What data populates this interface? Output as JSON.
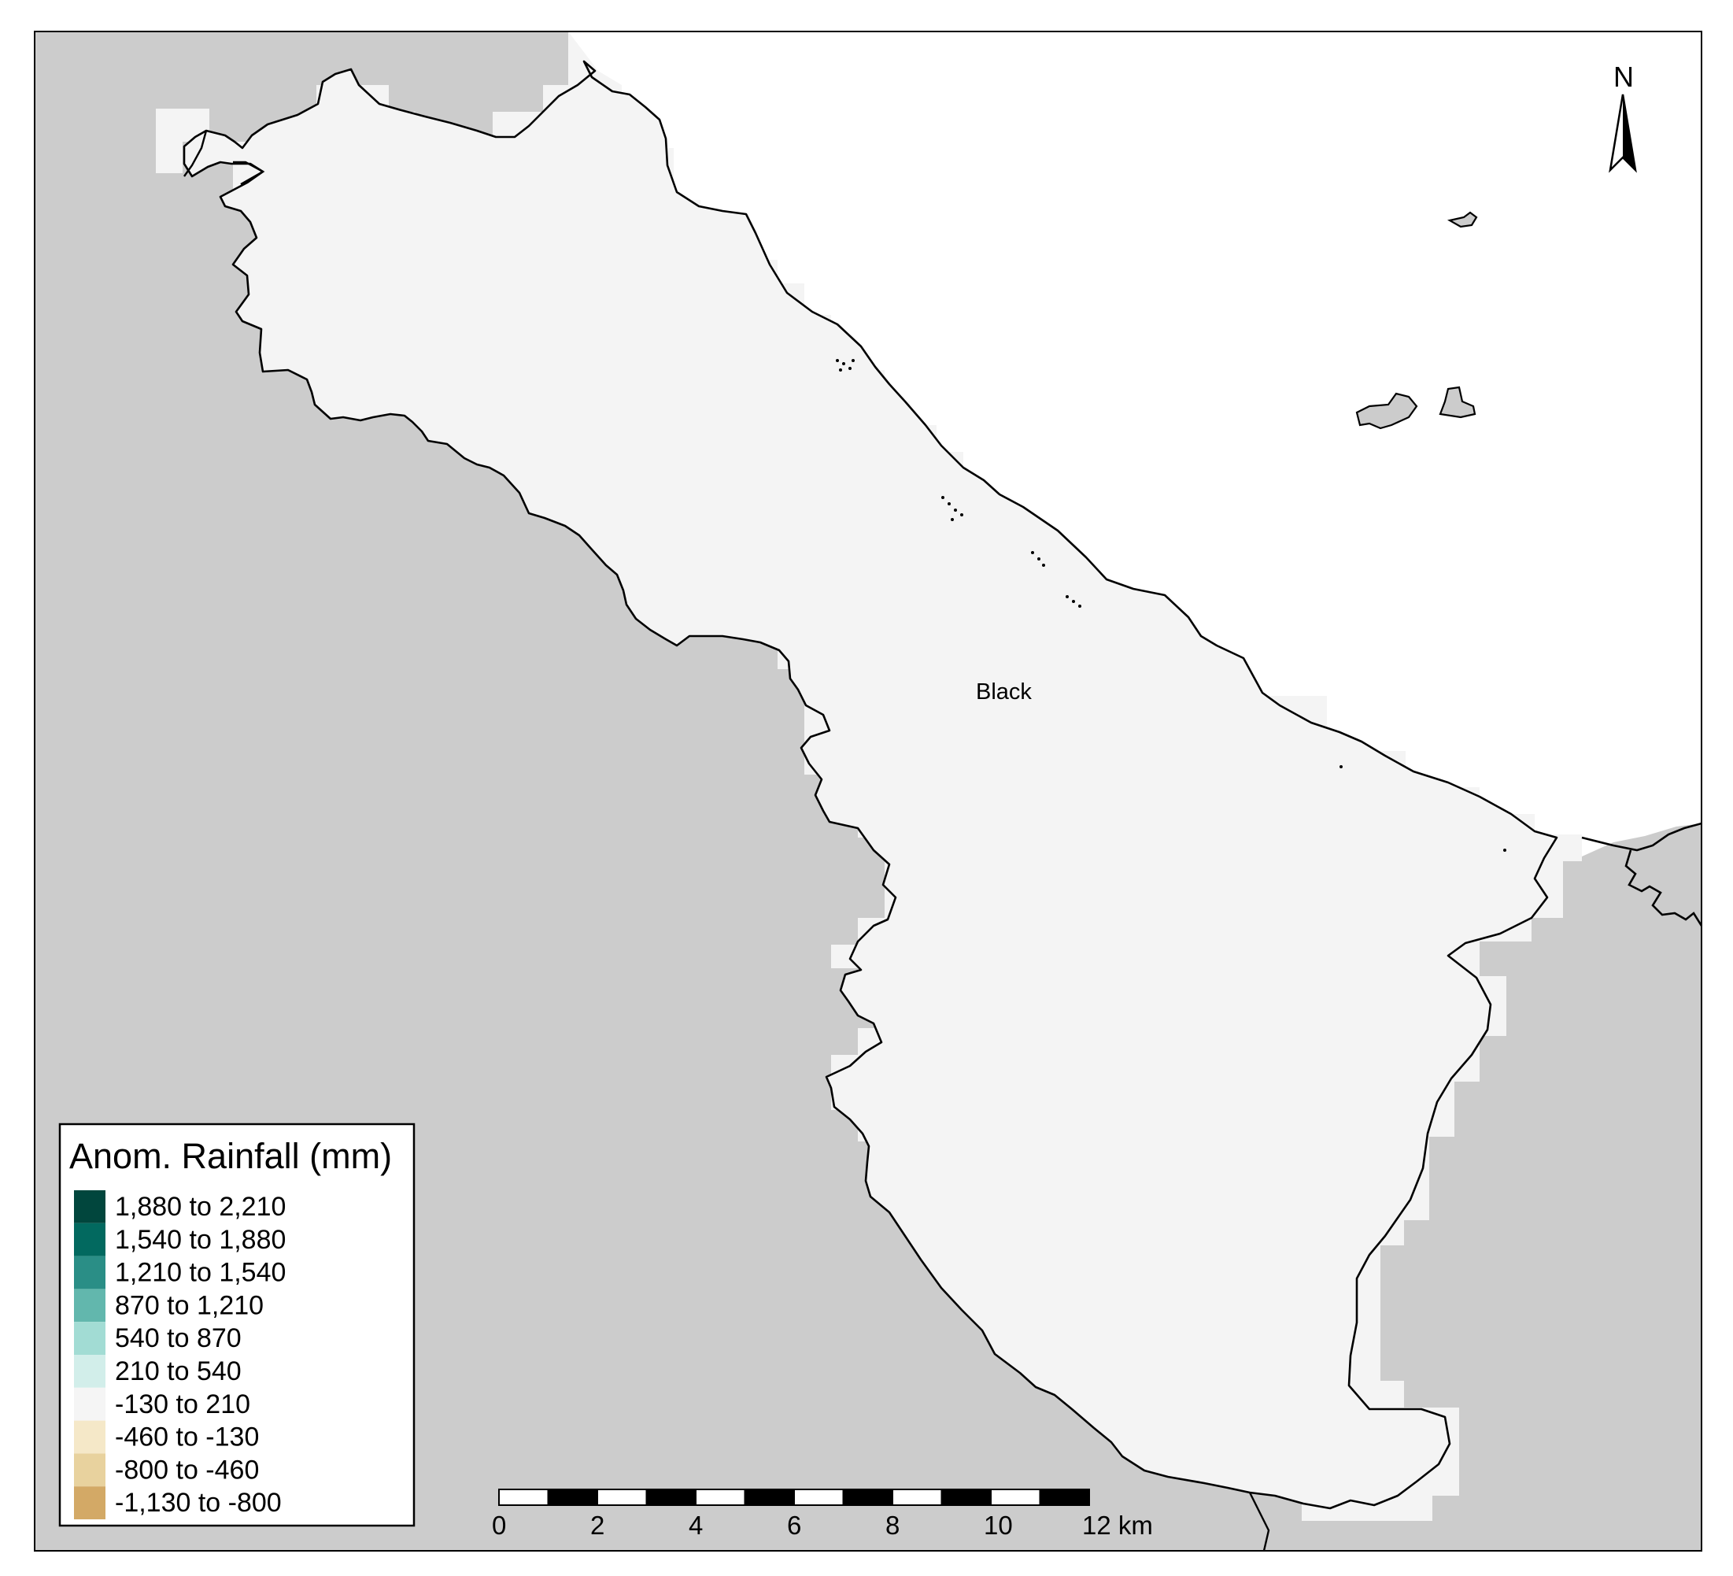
{
  "map": {
    "place_label": "Black",
    "north_arrow_label": "N",
    "colors": {
      "surrounding_area": "#cccccc",
      "study_area": "#f4f4f4",
      "sea": "#ffffff",
      "boundary": "#000000"
    }
  },
  "legend": {
    "title": "Anom. Rainfall (mm)",
    "classes": [
      {
        "label": "1,880 to 2,210",
        "color": "#01463d"
      },
      {
        "label": "1,540 to 1,880",
        "color": "#02695f"
      },
      {
        "label": "1,210 to 1,540",
        "color": "#2a8e86"
      },
      {
        "label": "870 to 1,210",
        "color": "#62b7ad"
      },
      {
        "label": "540 to 870",
        "color": "#a2dcd4"
      },
      {
        "label": "210 to 540",
        "color": "#d2eeea"
      },
      {
        "label": "-130 to 210",
        "color": "#f5f5f5"
      },
      {
        "label": "-460 to -130",
        "color": "#f5e8c8"
      },
      {
        "label": "-800 to -460",
        "color": "#e8d29e"
      },
      {
        "label": "-1,130 to -800",
        "color": "#d3a966"
      }
    ]
  },
  "scale_bar": {
    "ticks": [
      "0",
      "2",
      "4",
      "6",
      "8",
      "10",
      "12 km"
    ]
  }
}
